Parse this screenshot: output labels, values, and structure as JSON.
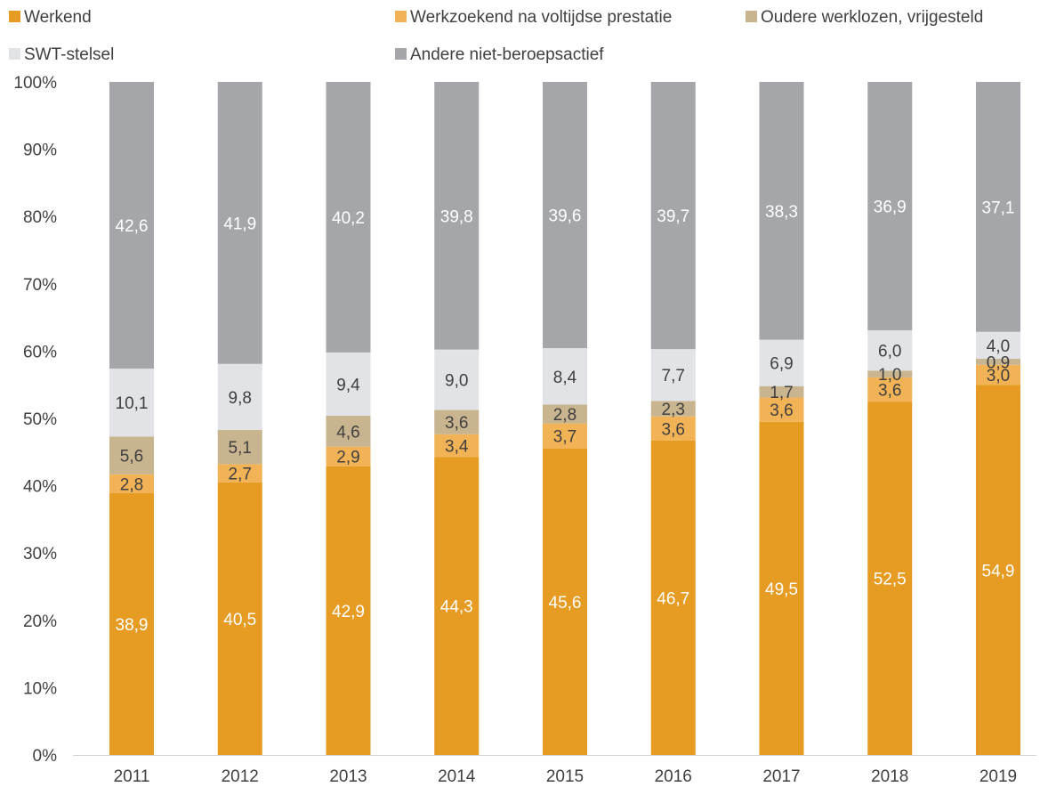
{
  "chart_data": {
    "type": "bar",
    "stacked": true,
    "percent_stacked": true,
    "categories": [
      "2011",
      "2012",
      "2013",
      "2014",
      "2015",
      "2016",
      "2017",
      "2018",
      "2019"
    ],
    "series": [
      {
        "name": "Werkend",
        "color": "#E69B22",
        "label_color": "#ffffff",
        "values": [
          38.9,
          40.5,
          42.9,
          44.3,
          45.6,
          46.7,
          49.5,
          52.5,
          54.9
        ],
        "labels": [
          "38,9",
          "40,5",
          "42,9",
          "44,3",
          "45,6",
          "46,7",
          "49,5",
          "52,5",
          "54,9"
        ]
      },
      {
        "name": "Werkzoekend na voltijdse prestatie",
        "color": "#F2B356",
        "label_color": "#404040",
        "values": [
          2.8,
          2.7,
          2.9,
          3.4,
          3.7,
          3.6,
          3.6,
          3.6,
          3.0
        ],
        "labels": [
          "2,8",
          "2,7",
          "2,9",
          "3,4",
          "3,7",
          "3,6",
          "3,6",
          "3,6",
          "3,0"
        ]
      },
      {
        "name": "Oudere werklozen, vrijgesteld",
        "color": "#C8B48F",
        "label_color": "#404040",
        "values": [
          5.6,
          5.1,
          4.6,
          3.6,
          2.8,
          2.3,
          1.7,
          1.0,
          0.9
        ],
        "labels": [
          "5,6",
          "5,1",
          "4,6",
          "3,6",
          "2,8",
          "2,3",
          "1,7",
          "1,0",
          "0,9"
        ]
      },
      {
        "name": "SWT-stelsel",
        "color": "#E1E3E7",
        "label_color": "#404040",
        "values": [
          10.1,
          9.8,
          9.4,
          9.0,
          8.4,
          7.7,
          6.9,
          6.0,
          4.0
        ],
        "labels": [
          "10,1",
          "9,8",
          "9,4",
          "9,0",
          "8,4",
          "7,7",
          "6,9",
          "6,0",
          "4,0"
        ]
      },
      {
        "name": "Andere niet-beroepsactief",
        "color": "#A4A6AA",
        "label_color": "#ffffff",
        "values": [
          42.6,
          41.9,
          40.2,
          39.8,
          39.6,
          39.7,
          38.3,
          36.9,
          37.1
        ],
        "labels": [
          "42,6",
          "41,9",
          "40,2",
          "39,8",
          "39,6",
          "39,7",
          "38,3",
          "36,9",
          "37,1"
        ]
      }
    ],
    "ylim": [
      0,
      100
    ],
    "yticks": [
      "0%",
      "10%",
      "20%",
      "30%",
      "40%",
      "50%",
      "60%",
      "70%",
      "80%",
      "90%",
      "100%"
    ],
    "grid": false,
    "legend_position": "top",
    "title": "",
    "xlabel": "",
    "ylabel": ""
  }
}
